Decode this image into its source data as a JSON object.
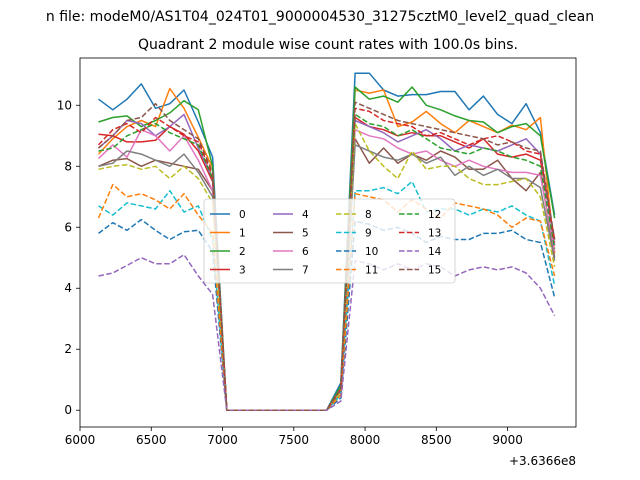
{
  "chart_data": {
    "type": "line",
    "suptitle": "n file: modeM0/AS1T04_024T01_9000004530_31275cztM0_level2_quad_clean",
    "title": "Quadrant 2 module wise count rates with 100.0s bins.",
    "xlabel": "",
    "ylabel": "",
    "x_offset_label": "+3.6366e8",
    "xlim": [
      6000,
      9480
    ],
    "ylim": [
      -0.55,
      11.55
    ],
    "xticks": [
      6000,
      6500,
      7000,
      7500,
      8000,
      8500,
      9000
    ],
    "yticks": [
      0,
      2,
      4,
      6,
      8,
      10
    ],
    "legend_position": "center",
    "x": [
      6130,
      6230,
      6330,
      6430,
      6530,
      6630,
      6730,
      6830,
      6930,
      7030,
      7130,
      7230,
      7330,
      7430,
      7530,
      7630,
      7730,
      7830,
      7930,
      8030,
      8130,
      8230,
      8330,
      8430,
      8530,
      8630,
      8730,
      8830,
      8930,
      9030,
      9130,
      9230,
      9330
    ],
    "series": [
      {
        "name": "0",
        "color": "#1f77b4",
        "dash": "solid",
        "values": [
          10.2,
          9.85,
          10.2,
          10.7,
          9.9,
          10.05,
          10.5,
          9.45,
          8.3,
          0,
          0,
          0,
          0,
          0,
          0,
          0,
          0,
          0.9,
          11.05,
          11.05,
          10.5,
          10.3,
          10.35,
          10.35,
          10.45,
          10.45,
          9.85,
          10.3,
          9.7,
          9.4,
          10.05,
          9.1,
          6.4
        ]
      },
      {
        "name": "1",
        "color": "#ff7f0e",
        "dash": "solid",
        "values": [
          8.4,
          8.9,
          9.3,
          9.5,
          9.3,
          10.55,
          9.9,
          8.95,
          7.95,
          0,
          0,
          0,
          0,
          0,
          0,
          0,
          0,
          0.7,
          10.5,
          10.4,
          10.5,
          9.3,
          9.45,
          9.8,
          9.4,
          9.1,
          9.5,
          9.3,
          9.1,
          9.35,
          9.2,
          9.6,
          5.15
        ]
      },
      {
        "name": "2",
        "color": "#2ca02c",
        "dash": "solid",
        "values": [
          9.45,
          9.6,
          9.65,
          9.3,
          9.5,
          9.75,
          10.15,
          9.85,
          8.0,
          0,
          0,
          0,
          0,
          0,
          0,
          0,
          0,
          0.8,
          10.6,
          10.2,
          10.3,
          10.1,
          10.6,
          10.0,
          9.85,
          9.65,
          9.5,
          9.45,
          9.1,
          9.3,
          9.4,
          9.0,
          6.3
        ]
      },
      {
        "name": "3",
        "color": "#d62728",
        "dash": "solid",
        "values": [
          9.05,
          9.0,
          8.8,
          8.8,
          8.85,
          9.3,
          9.05,
          8.5,
          7.5,
          0,
          0,
          0,
          0,
          0,
          0,
          0,
          0,
          0.7,
          9.6,
          9.3,
          9.2,
          9.0,
          9.1,
          9.0,
          9.0,
          8.8,
          8.6,
          8.9,
          8.4,
          8.3,
          8.4,
          8.2,
          5.6
        ]
      },
      {
        "name": "4",
        "color": "#9467bd",
        "dash": "solid",
        "values": [
          8.6,
          9.0,
          9.5,
          9.4,
          9.0,
          9.3,
          9.7,
          8.6,
          7.6,
          0,
          0,
          0,
          0,
          0,
          0,
          0,
          0,
          0.7,
          9.5,
          9.3,
          9.1,
          8.8,
          9.0,
          9.2,
          8.9,
          8.5,
          8.7,
          8.6,
          8.5,
          8.7,
          8.9,
          8.4,
          5.4
        ]
      },
      {
        "name": "5",
        "color": "#8c564b",
        "dash": "solid",
        "values": [
          8.0,
          8.2,
          8.25,
          8.0,
          8.2,
          8.1,
          8.0,
          7.9,
          7.2,
          0,
          0,
          0,
          0,
          0,
          0,
          0,
          0,
          0.6,
          8.9,
          8.1,
          8.6,
          8.1,
          8.4,
          8.2,
          8.5,
          8.3,
          7.9,
          7.9,
          8.2,
          7.6,
          7.2,
          7.8,
          5.0
        ]
      },
      {
        "name": "6",
        "color": "#e377c2",
        "dash": "solid",
        "values": [
          8.25,
          8.7,
          8.3,
          9.2,
          9.0,
          8.5,
          9.0,
          8.2,
          7.2,
          0,
          0,
          0,
          0,
          0,
          0,
          0,
          0,
          0.6,
          9.2,
          9.0,
          8.9,
          8.6,
          8.4,
          8.5,
          8.2,
          8.0,
          8.2,
          8.0,
          7.9,
          7.8,
          7.8,
          7.7,
          5.2
        ]
      },
      {
        "name": "7",
        "color": "#7f7f7f",
        "dash": "solid",
        "values": [
          8.0,
          8.1,
          8.5,
          8.4,
          8.2,
          8.0,
          8.4,
          7.8,
          7.0,
          0,
          0,
          0,
          0,
          0,
          0,
          0,
          0,
          0.6,
          8.7,
          8.5,
          8.3,
          8.2,
          8.4,
          8.1,
          8.3,
          7.7,
          8.0,
          7.7,
          7.9,
          7.6,
          7.6,
          7.3,
          4.9
        ]
      },
      {
        "name": "8",
        "color": "#bcbd22",
        "dash": "dashed",
        "values": [
          7.9,
          8.0,
          8.05,
          7.9,
          8.0,
          7.6,
          8.0,
          7.6,
          6.8,
          0,
          0,
          0,
          0,
          0,
          0,
          0,
          0,
          0.6,
          9.4,
          8.5,
          8.0,
          7.6,
          8.5,
          7.9,
          8.0,
          8.0,
          7.6,
          7.4,
          7.4,
          7.5,
          7.6,
          7.0,
          4.7
        ]
      },
      {
        "name": "9",
        "color": "#17becf",
        "dash": "dashed",
        "values": [
          6.7,
          6.4,
          6.8,
          6.7,
          6.6,
          7.2,
          6.5,
          6.7,
          5.6,
          0,
          0,
          0,
          0,
          0,
          0,
          0,
          0,
          0.5,
          7.2,
          7.2,
          7.3,
          7.1,
          7.5,
          6.5,
          6.6,
          6.6,
          6.4,
          6.6,
          6.5,
          6.7,
          6.4,
          6.2,
          4.1
        ]
      },
      {
        "name": "10",
        "color": "#1f77b4",
        "dash": "dashed",
        "values": [
          5.8,
          6.15,
          5.9,
          6.25,
          5.9,
          5.6,
          5.85,
          5.9,
          5.2,
          0,
          0,
          0,
          0,
          0,
          0,
          0,
          0,
          0.4,
          6.2,
          6.1,
          5.9,
          6.0,
          5.8,
          5.5,
          5.7,
          5.6,
          5.6,
          5.8,
          5.8,
          5.9,
          5.6,
          5.5,
          3.7
        ]
      },
      {
        "name": "11",
        "color": "#ff7f0e",
        "dash": "dashed",
        "values": [
          6.3,
          7.4,
          7.0,
          7.1,
          6.9,
          6.6,
          7.1,
          6.4,
          5.8,
          0,
          0,
          0,
          0,
          0,
          0,
          0,
          0,
          0.5,
          7.1,
          7.0,
          6.9,
          6.5,
          6.9,
          6.6,
          6.3,
          6.8,
          6.7,
          6.6,
          6.4,
          6.0,
          6.3,
          6.2,
          4.4
        ]
      },
      {
        "name": "12",
        "color": "#2ca02c",
        "dash": "dashed",
        "values": [
          8.5,
          8.6,
          9.0,
          9.2,
          9.4,
          9.1,
          8.9,
          8.7,
          7.6,
          0,
          0,
          0,
          0,
          0,
          0,
          0,
          0,
          0.7,
          9.7,
          9.4,
          9.3,
          9.0,
          9.2,
          8.9,
          8.6,
          8.5,
          8.4,
          8.6,
          8.5,
          8.3,
          8.2,
          8.0,
          5.3
        ]
      },
      {
        "name": "13",
        "color": "#d62728",
        "dash": "dashed",
        "values": [
          8.7,
          9.2,
          9.4,
          9.1,
          9.6,
          9.3,
          9.0,
          8.8,
          7.7,
          0,
          0,
          0,
          0,
          0,
          0,
          0,
          0,
          0.7,
          9.9,
          9.8,
          9.5,
          9.4,
          9.3,
          9.0,
          9.1,
          8.9,
          8.7,
          8.9,
          9.0,
          8.8,
          8.5,
          8.4,
          5.5
        ]
      },
      {
        "name": "14",
        "color": "#9467bd",
        "dash": "dashed",
        "values": [
          4.4,
          4.5,
          4.75,
          5.0,
          4.8,
          4.8,
          5.1,
          4.4,
          3.8,
          0,
          0,
          0,
          0,
          0,
          0,
          0,
          0,
          0.3,
          4.9,
          4.8,
          4.6,
          4.8,
          4.6,
          4.8,
          4.7,
          4.4,
          4.6,
          4.7,
          4.6,
          4.7,
          4.5,
          4.0,
          3.1
        ]
      },
      {
        "name": "15",
        "color": "#8c564b",
        "dash": "dashed",
        "values": [
          8.6,
          9.0,
          9.5,
          9.6,
          10.05,
          9.5,
          9.2,
          8.9,
          7.8,
          0,
          0,
          0,
          0,
          0,
          0,
          0,
          0,
          0.7,
          10.1,
          9.9,
          9.7,
          9.5,
          9.4,
          9.3,
          9.2,
          9.1,
          9.0,
          8.9,
          8.7,
          8.8,
          8.6,
          8.5,
          5.6
        ]
      }
    ]
  }
}
